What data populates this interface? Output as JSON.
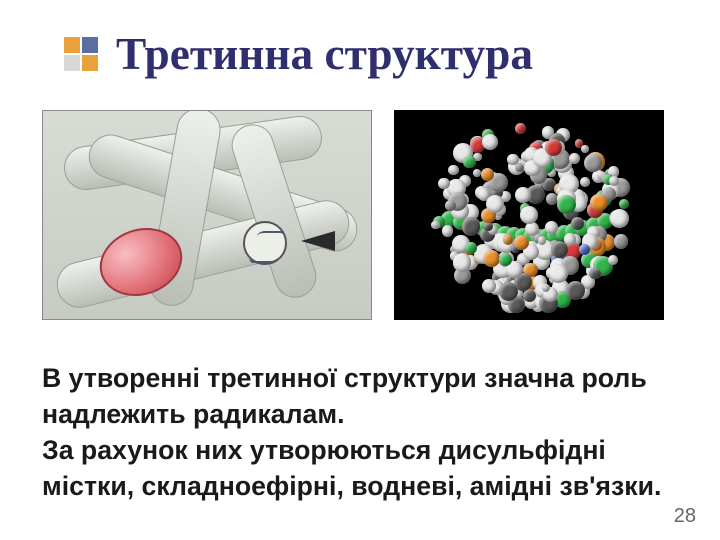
{
  "title": {
    "text": "Третинна структура",
    "font_size_pt": 34,
    "color": "#2f2f6f",
    "bullet_colors": {
      "tl": "#e9a23b",
      "tr": "#5b6ea0",
      "bl": "#d8d8d8",
      "br": "#e9a23b"
    }
  },
  "body": {
    "lines": [
      "     В утворенні третинної структури значна роль надлежить радикалам.",
      "      За рахунок  них утворюються дисульфідні містки, складноефірні, водневі, амідні  зв'язки."
    ],
    "font_size_pt": 20,
    "color": "#1a1a1a"
  },
  "page_number": {
    "value": "28",
    "font_size_pt": 15,
    "color": "#666666"
  },
  "left_image": {
    "type": "diagram-illustration",
    "description": "knotted-protein-tube",
    "oval_color": "#e16d74",
    "tube_color": "#c6cbc3",
    "helix_border": "#4a5870"
  },
  "right_image": {
    "type": "molecular-render",
    "bg": "#000000",
    "atom_palette": {
      "white": "#e8e8e8",
      "grey": "#9a9a9a",
      "darkgrey": "#5a5a5a",
      "green": "#2fb54a",
      "orange": "#e98f2a",
      "blue": "#4a6fd1",
      "red": "#d63a3a"
    }
  }
}
